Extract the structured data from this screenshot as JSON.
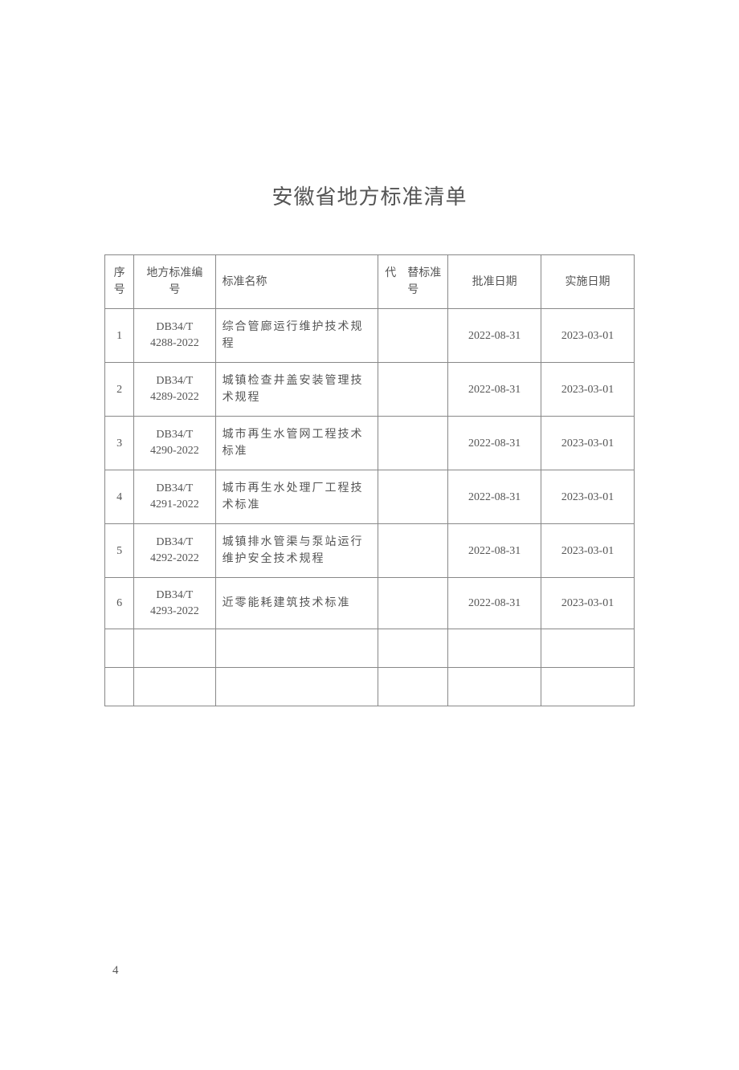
{
  "title": "安徽省地方标准清单",
  "columns": {
    "seq": "序号",
    "code": "地方标准编　号",
    "name": "标准名称",
    "replace": "代　替标准号",
    "approve": "批准日期",
    "impl": "实施日期"
  },
  "rows": [
    {
      "seq": "1",
      "code_line1": "DB34/T",
      "code_line2": "4288-2022",
      "name": "综合管廊运行维护技术规程",
      "replace": "",
      "approve": "2022-08-31",
      "impl": "2023-03-01"
    },
    {
      "seq": "2",
      "code_line1": "DB34/T",
      "code_line2": "4289-2022",
      "name": "城镇检查井盖安装管理技术规程",
      "replace": "",
      "approve": "2022-08-31",
      "impl": "2023-03-01"
    },
    {
      "seq": "3",
      "code_line1": "DB34/T",
      "code_line2": "4290-2022",
      "name": "城市再生水管网工程技术标准",
      "replace": "",
      "approve": "2022-08-31",
      "impl": "2023-03-01"
    },
    {
      "seq": "4",
      "code_line1": "DB34/T",
      "code_line2": "4291-2022",
      "name": "城市再生水处理厂工程技术标准",
      "replace": "",
      "approve": "2022-08-31",
      "impl": "2023-03-01"
    },
    {
      "seq": "5",
      "code_line1": "DB34/T",
      "code_line2": "4292-2022",
      "name": "城镇排水管渠与泵站运行维护安全技术规程",
      "replace": "",
      "approve": "2022-08-31",
      "impl": "2023-03-01"
    },
    {
      "seq": "6",
      "code_line1": "DB34/T",
      "code_line2": "4293-2022",
      "name": "近零能耗建筑技术标准",
      "replace": "",
      "approve": "2022-08-31",
      "impl": "2023-03-01"
    }
  ],
  "empty_rows": 2,
  "page_number": "4"
}
